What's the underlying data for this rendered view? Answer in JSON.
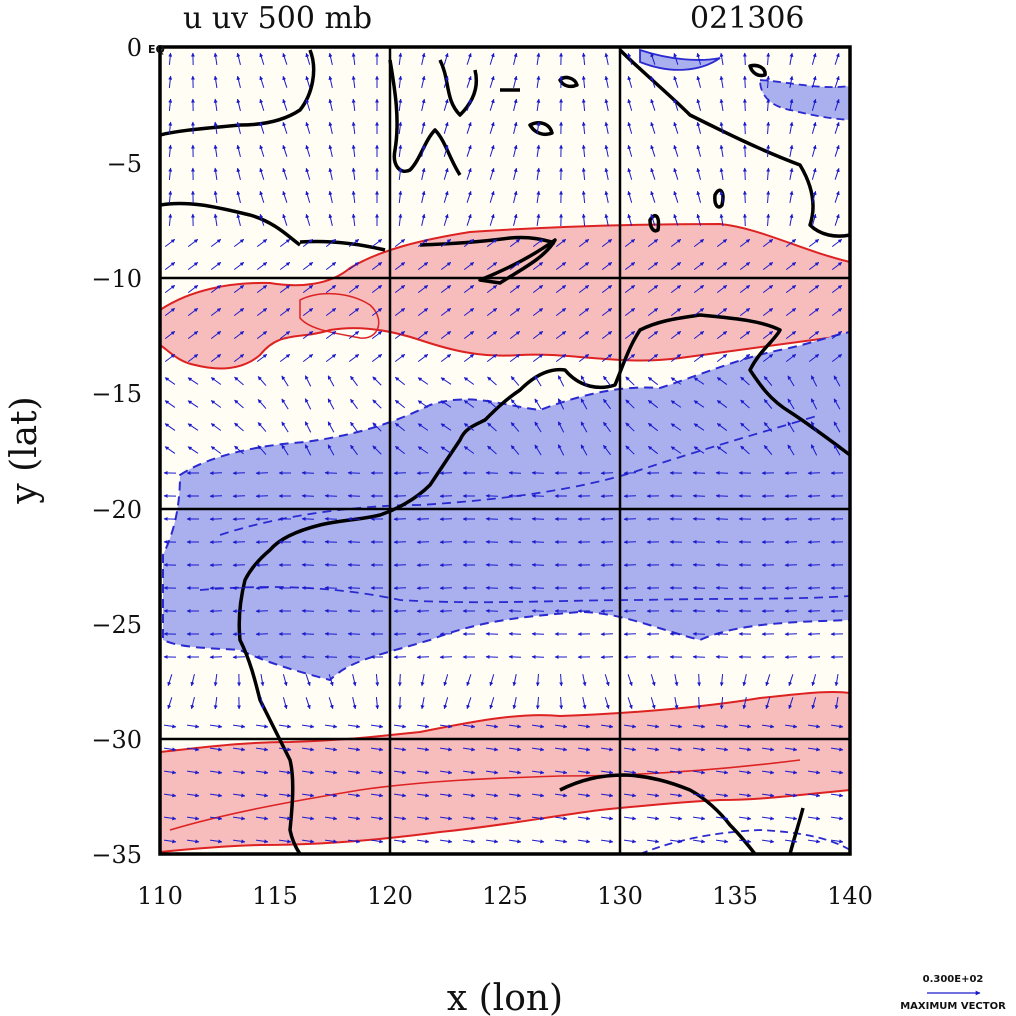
{
  "title": {
    "left": "u uv 500 mb",
    "right": "021306"
  },
  "axes": {
    "xlabel": "x (lon)",
    "ylabel": "y (lat)",
    "x_ticks": [
      "110",
      "115",
      "120",
      "125",
      "130",
      "135",
      "140"
    ],
    "y_ticks": [
      "0",
      "−5",
      "−10",
      "−15",
      "−20",
      "−25",
      "−30",
      "−35"
    ],
    "equator_marker": "EQ"
  },
  "legend": {
    "value_label": "0.300E+02",
    "caption": "MAXIMUM VECTOR"
  },
  "chart_data": {
    "type": "contour-vector-map",
    "variable": "u wind with uv vectors at 500 mb",
    "date_code": "021306",
    "xlim": [
      110,
      140
    ],
    "ylim": [
      -35,
      0
    ],
    "gridlines_lon": [
      120,
      130
    ],
    "gridlines_lat": [
      -10,
      -20,
      -30
    ],
    "shading": [
      {
        "name": "easterly core (negative u)",
        "color": "#aab0ee",
        "contour_color": "#2a2ad0",
        "lat_range": [
          -26,
          -15
        ]
      },
      {
        "name": "westerly band north (positive u)",
        "color": "#f7bcbc",
        "contour_color": "#dd2222",
        "lat_range": [
          -13.5,
          -8
        ]
      },
      {
        "name": "westerly band south (positive u)",
        "color": "#f7bcbc",
        "contour_color": "#dd2222",
        "lat_range": [
          -35,
          -28.5
        ]
      }
    ],
    "coastline_color": "#000000",
    "vector_color": "#1a1acc",
    "max_vector": "0.300E+02"
  }
}
